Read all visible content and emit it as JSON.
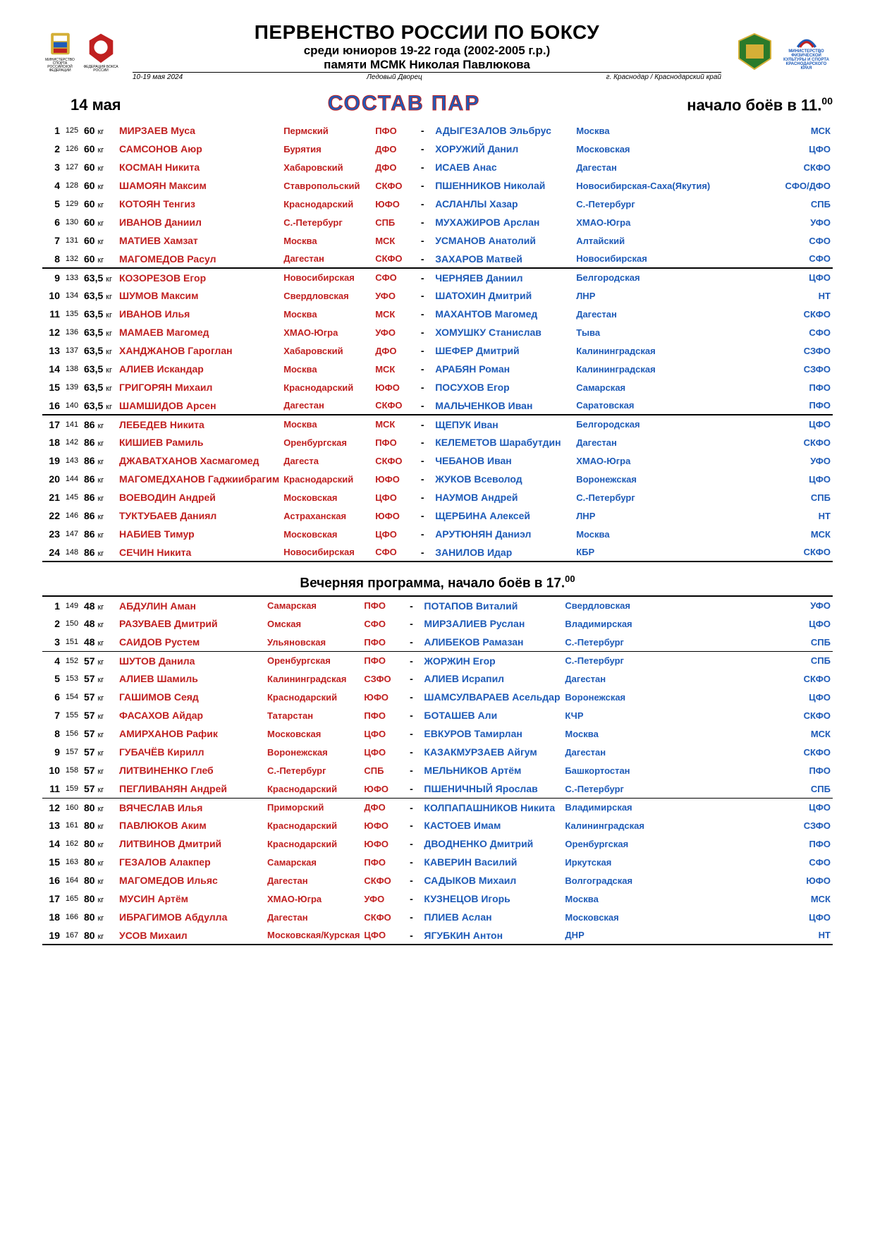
{
  "header": {
    "main_title": "ПЕРВЕНСТВО РОССИИ ПО БОКСУ",
    "sub_title": "среди юниоров 19-22 года (2002-2005 г.р.)",
    "sub_title2": "памяти МСМК Николая Павлюкова",
    "dates": "10-19 мая 2024",
    "venue": "Ледовый Дворец",
    "city": "г. Краснодар / Краснодарский край",
    "logo1_text": "МИНИСТЕРСТВО СПОРТА РОССИЙСКОЙ ФЕДЕРАЦИИ",
    "logo2_text": "ФЕДЕРАЦИЯ БОКСА РОССИИ",
    "right_logo_text": "МИНИСТЕРСТВО ФИЗИЧЕСКОЙ КУЛЬТУРЫ И СПОРТА КРАСНОДАРСКОГО КРАЯ"
  },
  "date_label": "14 мая",
  "sostav_label": "СОСТАВ  ПАР",
  "start_label": "начало боёв в 11.",
  "start_sup": "00",
  "evening_label": "Вечерняя программа, начало боёв в 17.",
  "evening_sup": "00",
  "colors": {
    "red": "#c02020",
    "blue": "#1e5bb8",
    "black": "#000000"
  },
  "kg_label": "кг",
  "morning": [
    {
      "n": 1,
      "b": 125,
      "w": "60",
      "rn": "МИРЗАЕВ Муса",
      "rr": "Пермский",
      "rf": "ПФО",
      "bn": "АДЫГЕЗАЛОВ Эльбрус",
      "br": "Москва",
      "bf": "МСК"
    },
    {
      "n": 2,
      "b": 126,
      "w": "60",
      "rn": "САМСОНОВ Аюр",
      "rr": "Бурятия",
      "rf": "ДФО",
      "bn": "ХОРУЖИЙ Данил",
      "br": "Московская",
      "bf": "ЦФО"
    },
    {
      "n": 3,
      "b": 127,
      "w": "60",
      "rn": "КОСМАН Никита",
      "rr": "Хабаровский",
      "rf": "ДФО",
      "bn": "ИСАЕВ Анас",
      "br": "Дагестан",
      "bf": "СКФО"
    },
    {
      "n": 4,
      "b": 128,
      "w": "60",
      "rn": "ШАМОЯН Максим",
      "rr": "Ставропольский",
      "rf": "СКФО",
      "bn": "ПШЕННИКОВ Николай",
      "br": "Новосибирская-Саха(Якутия)",
      "bf": "СФО/ДФО"
    },
    {
      "n": 5,
      "b": 129,
      "w": "60",
      "rn": "КОТОЯН Тенгиз",
      "rr": "Краснодарский",
      "rf": "ЮФО",
      "bn": "АСЛАНЛЫ Хазар",
      "br": "С.-Петербург",
      "bf": "СПБ"
    },
    {
      "n": 6,
      "b": 130,
      "w": "60",
      "rn": "ИВАНОВ Даниил",
      "rr": "С.-Петербург",
      "rf": "СПБ",
      "bn": "МУХАЖИРОВ Арслан",
      "br": "ХМАО-Югра",
      "bf": "УФО"
    },
    {
      "n": 7,
      "b": 131,
      "w": "60",
      "rn": "МАТИЕВ Хамзат",
      "rr": "Москва",
      "rf": "МСК",
      "bn": "УСМАНОВ Анатолий",
      "br": "Алтайский",
      "bf": "СФО"
    },
    {
      "n": 8,
      "b": 132,
      "w": "60",
      "rn": "МАГОМЕДОВ Расул",
      "rr": "Дагестан",
      "rf": "СКФО",
      "bn": "ЗАХАРОВ Матвей",
      "br": "Новосибирская",
      "bf": "СФО",
      "div": 2
    },
    {
      "n": 9,
      "b": 133,
      "w": "63,5",
      "rn": "КОЗОРЕЗОВ Егор",
      "rr": "Новосибирская",
      "rf": "СФО",
      "bn": "ЧЕРНЯЕВ Даниил",
      "br": "Белгородская",
      "bf": "ЦФО"
    },
    {
      "n": 10,
      "b": 134,
      "w": "63,5",
      "rn": "ШУМОВ Максим",
      "rr": "Свердловская",
      "rf": "УФО",
      "bn": "ШАТОХИН Дмитрий",
      "br": "ЛНР",
      "bf": "НТ"
    },
    {
      "n": 11,
      "b": 135,
      "w": "63,5",
      "rn": "ИВАНОВ Илья",
      "rr": "Москва",
      "rf": "МСК",
      "bn": "МАХАНТОВ Магомед",
      "br": "Дагестан",
      "bf": "СКФО"
    },
    {
      "n": 12,
      "b": 136,
      "w": "63,5",
      "rn": "МАМАЕВ Магомед",
      "rr": "ХМАО-Югра",
      "rf": "УФО",
      "bn": "ХОМУШКУ Станислав",
      "br": "Тыва",
      "bf": "СФО"
    },
    {
      "n": 13,
      "b": 137,
      "w": "63,5",
      "rn": "ХАНДЖАНОВ Гароглан",
      "rr": "Хабаровский",
      "rf": "ДФО",
      "bn": "ШЕФЕР Дмитрий",
      "br": "Калининградская",
      "bf": "СЗФО"
    },
    {
      "n": 14,
      "b": 138,
      "w": "63,5",
      "rn": "АЛИЕВ Искандар",
      "rr": "Москва",
      "rf": "МСК",
      "bn": "АРАБЯН Роман",
      "br": "Калининградская",
      "bf": "СЗФО"
    },
    {
      "n": 15,
      "b": 139,
      "w": "63,5",
      "rn": "ГРИГОРЯН Михаил",
      "rr": "Краснодарский",
      "rf": "ЮФО",
      "bn": "ПОСУХОВ Егор",
      "br": "Самарская",
      "bf": "ПФО"
    },
    {
      "n": 16,
      "b": 140,
      "w": "63,5",
      "rn": "ШАМШИДОВ Арсен",
      "rr": "Дагестан",
      "rf": "СКФО",
      "bn": "МАЛЬЧЕНКОВ Иван",
      "br": "Саратовская",
      "bf": "ПФО",
      "div": 2
    },
    {
      "n": 17,
      "b": 141,
      "w": "86",
      "rn": "ЛЕБЕДЕВ Никита",
      "rr": "Москва",
      "rf": "МСК",
      "bn": "ЩЕПУК Иван",
      "br": "Белгородская",
      "bf": "ЦФО"
    },
    {
      "n": 18,
      "b": 142,
      "w": "86",
      "rn": "КИШИЕВ Рамиль",
      "rr": "Оренбургская",
      "rf": "ПФО",
      "bn": "КЕЛЕМЕТОВ Шарабутдин",
      "br": "Дагестан",
      "bf": "СКФО"
    },
    {
      "n": 19,
      "b": 143,
      "w": "86",
      "rn": "ДЖАВАТХАНОВ Хасмагомед",
      "rr": "Дагеста",
      "rf": "СКФО",
      "bn": "ЧЕБАНОВ Иван",
      "br": "ХМАО-Югра",
      "bf": "УФО"
    },
    {
      "n": 20,
      "b": 144,
      "w": "86",
      "rn": "МАГОМЕДХАНОВ Гаджиибрагим",
      "rr": "Краснодарский",
      "rf": "ЮФО",
      "bn": "ЖУКОВ Всеволод",
      "br": "Воронежская",
      "bf": "ЦФО"
    },
    {
      "n": 21,
      "b": 145,
      "w": "86",
      "rn": "ВОЕВОДИН Андрей",
      "rr": "Московская",
      "rf": "ЦФО",
      "bn": "НАУМОВ Андрей",
      "br": "С.-Петербург",
      "bf": "СПБ"
    },
    {
      "n": 22,
      "b": 146,
      "w": "86",
      "rn": "ТУКТУБАЕВ Даниял",
      "rr": "Астраханская",
      "rf": "ЮФО",
      "bn": "ЩЕРБИНА Алексей",
      "br": "ЛНР",
      "bf": "НТ"
    },
    {
      "n": 23,
      "b": 147,
      "w": "86",
      "rn": "НАБИЕВ Тимур",
      "rr": "Московская",
      "rf": "ЦФО",
      "bn": "АРУТЮНЯН Даниэл",
      "br": "Москва",
      "bf": "МСК"
    },
    {
      "n": 24,
      "b": 148,
      "w": "86",
      "rn": "СЕЧИН Никита",
      "rr": "Новосибирская",
      "rf": "СФО",
      "bn": "ЗАНИЛОВ Идар",
      "br": "КБР",
      "bf": "СКФО",
      "div": 2
    }
  ],
  "evening": [
    {
      "n": 1,
      "b": 149,
      "w": "48",
      "rn": "АБДУЛИН Аман",
      "rr": "Самарская",
      "rf": "ПФО",
      "bn": "ПОТАПОВ Виталий",
      "br": "Свердловская",
      "bf": "УФО"
    },
    {
      "n": 2,
      "b": 150,
      "w": "48",
      "rn": "РАЗУВАЕВ Дмитрий",
      "rr": "Омская",
      "rf": "СФО",
      "bn": "МИРЗАЛИЕВ Руслан",
      "br": "Владимирская",
      "bf": "ЦФО"
    },
    {
      "n": 3,
      "b": 151,
      "w": "48",
      "rn": "САИДОВ Рустем",
      "rr": "Ульяновская",
      "rf": "ПФО",
      "bn": "АЛИБЕКОВ Рамазан",
      "br": "С.-Петербург",
      "bf": "СПБ",
      "div": 1
    },
    {
      "n": 4,
      "b": 152,
      "w": "57",
      "rn": "ШУТОВ Данила",
      "rr": "Оренбургская",
      "rf": "ПФО",
      "bn": "ЖОРЖИН Егор",
      "br": "С.-Петербург",
      "bf": "СПБ"
    },
    {
      "n": 5,
      "b": 153,
      "w": "57",
      "rn": "АЛИЕВ Шамиль",
      "rr": "Калининградская",
      "rf": "СЗФО",
      "bn": "АЛИЕВ Исрапил",
      "br": "Дагестан",
      "bf": "СКФО"
    },
    {
      "n": 6,
      "b": 154,
      "w": "57",
      "rn": "ГАШИМОВ Сеяд",
      "rr": "Краснодарский",
      "rf": "ЮФО",
      "bn": "ШАМСУЛВАРАЕВ Асельдар",
      "br": "Воронежская",
      "bf": "ЦФО"
    },
    {
      "n": 7,
      "b": 155,
      "w": "57",
      "rn": "ФАСАХОВ Айдар",
      "rr": "Татарстан",
      "rf": "ПФО",
      "bn": "БОТАШЕВ Али",
      "br": "КЧР",
      "bf": "СКФО"
    },
    {
      "n": 8,
      "b": 156,
      "w": "57",
      "rn": "АМИРХАНОВ Рафик",
      "rr": "Московская",
      "rf": "ЦФО",
      "bn": "ЕВКУРОВ Тамирлан",
      "br": "Москва",
      "bf": "МСК"
    },
    {
      "n": 9,
      "b": 157,
      "w": "57",
      "rn": "ГУБАЧЁВ Кирилл",
      "rr": "Воронежская",
      "rf": "ЦФО",
      "bn": "КАЗАКМУРЗАЕВ Айгум",
      "br": "Дагестан",
      "bf": "СКФО"
    },
    {
      "n": 10,
      "b": 158,
      "w": "57",
      "rn": "ЛИТВИНЕНКО Глеб",
      "rr": "С.-Петербург",
      "rf": "СПБ",
      "bn": "МЕЛЬНИКОВ Артём",
      "br": "Башкортостан",
      "bf": "ПФО"
    },
    {
      "n": 11,
      "b": 159,
      "w": "57",
      "rn": "ПЕГЛИВАНЯН Андрей",
      "rr": "Краснодарский",
      "rf": "ЮФО",
      "bn": "ПШЕНИЧНЫЙ Ярослав",
      "br": "С.-Петербург",
      "bf": "СПБ",
      "div": 1
    },
    {
      "n": 12,
      "b": 160,
      "w": "80",
      "rn": "ВЯЧЕСЛАВ Илья",
      "rr": "Приморский",
      "rf": "ДФО",
      "bn": "КОЛПАПАШНИКОВ Никита",
      "br": "Владимирская",
      "bf": "ЦФО"
    },
    {
      "n": 13,
      "b": 161,
      "w": "80",
      "rn": "ПАВЛЮКОВ Аким",
      "rr": "Краснодарский",
      "rf": "ЮФО",
      "bn": "КАСТОЕВ Имам",
      "br": "Калининградская",
      "bf": "СЗФО"
    },
    {
      "n": 14,
      "b": 162,
      "w": "80",
      "rn": "ЛИТВИНОВ Дмитрий",
      "rr": "Краснодарский",
      "rf": "ЮФО",
      "bn": "ДВОДНЕНКО Дмитрий",
      "br": "Оренбургская",
      "bf": "ПФО"
    },
    {
      "n": 15,
      "b": 163,
      "w": "80",
      "rn": "ГЕЗАЛОВ Алакпер",
      "rr": "Самарская",
      "rf": "ПФО",
      "bn": "КАВЕРИН Василий",
      "br": "Иркутская",
      "bf": "СФО"
    },
    {
      "n": 16,
      "b": 164,
      "w": "80",
      "rn": "МАГОМЕДОВ Ильяс",
      "rr": "Дагестан",
      "rf": "СКФО",
      "bn": "САДЫКОВ Михаил",
      "br": "Волгоградская",
      "bf": "ЮФО"
    },
    {
      "n": 17,
      "b": 165,
      "w": "80",
      "rn": "МУСИН Артём",
      "rr": "ХМАО-Югра",
      "rf": "УФО",
      "bn": "КУЗНЕЦОВ Игорь",
      "br": "Москва",
      "bf": "МСК"
    },
    {
      "n": 18,
      "b": 166,
      "w": "80",
      "rn": "ИБРАГИМОВ Абдулла",
      "rr": "Дагестан",
      "rf": "СКФО",
      "bn": "ПЛИЕВ Аслан",
      "br": "Московская",
      "bf": "ЦФО"
    },
    {
      "n": 19,
      "b": 167,
      "w": "80",
      "rn": "УСОВ Михаил",
      "rr": "Московская/Курская",
      "rf": "ЦФО",
      "bn": "ЯГУБКИН Антон",
      "br": "ДНР",
      "bf": "НТ",
      "div": 2
    }
  ]
}
